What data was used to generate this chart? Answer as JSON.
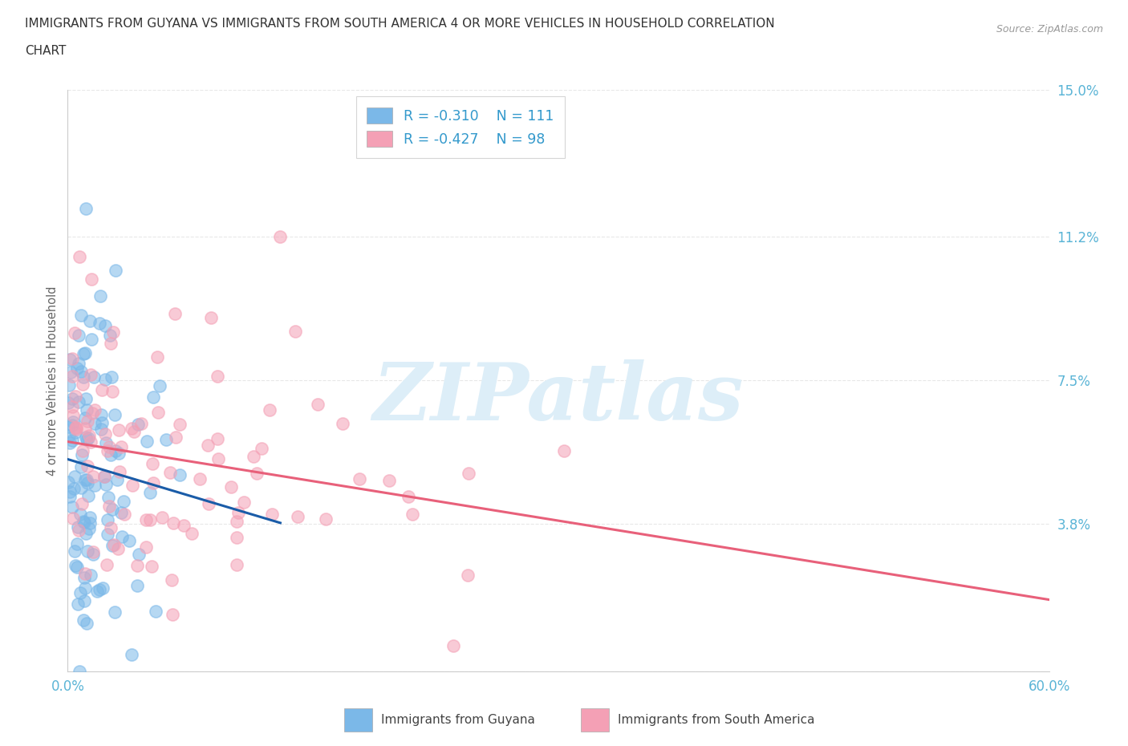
{
  "title_line1": "IMMIGRANTS FROM GUYANA VS IMMIGRANTS FROM SOUTH AMERICA 4 OR MORE VEHICLES IN HOUSEHOLD CORRELATION",
  "title_line2": "CHART",
  "source": "Source: ZipAtlas.com",
  "ylabel": "4 or more Vehicles in Household",
  "ytick_values": [
    0.0,
    3.8,
    7.5,
    11.2,
    15.0
  ],
  "ytick_labels": [
    "",
    "3.8%",
    "7.5%",
    "11.2%",
    "15.0%"
  ],
  "xlim": [
    0.0,
    60.0
  ],
  "ylim": [
    0.0,
    15.0
  ],
  "legend_guyana_R": "R = -0.310",
  "legend_guyana_N": "N = 111",
  "legend_south_america_R": "R = -0.427",
  "legend_south_america_N": "N = 98",
  "guyana_color": "#7bb8e8",
  "south_america_color": "#f4a0b5",
  "guyana_line_color": "#1a5ca8",
  "south_america_line_color": "#e8607a",
  "watermark_color": "#ddeef8",
  "background_color": "#ffffff",
  "grid_color": "#e8e8e8",
  "tick_color": "#5ab4d6",
  "label_color": "#666666",
  "legend_text_color": "#3399cc"
}
